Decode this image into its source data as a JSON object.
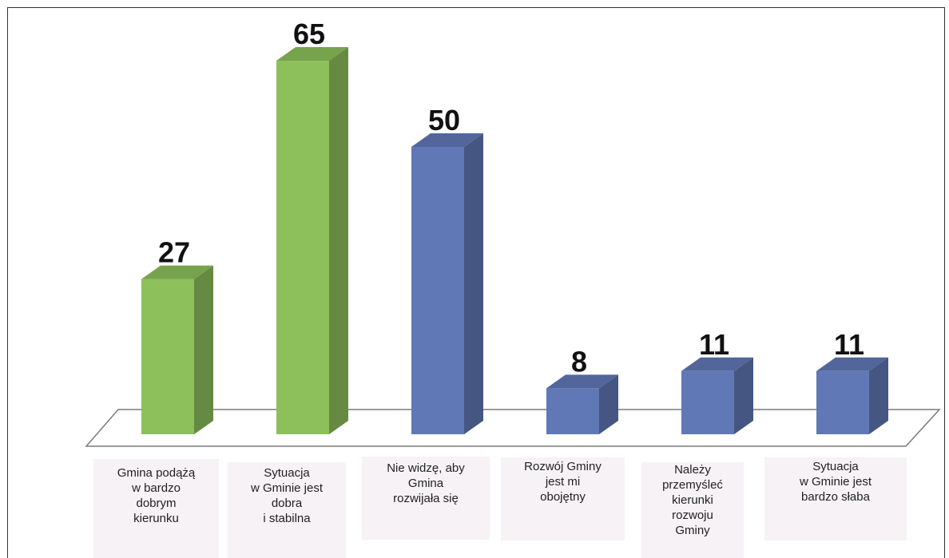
{
  "chart_data": {
    "type": "bar",
    "title": "",
    "xlabel": "",
    "ylabel": "",
    "categories": [
      "Gmina podążą\nw bardzo\ndobrym\nkierunku",
      "Sytuacja\nw Gminie jest\ndobra\ni stabilna",
      "Nie widzę, aby\nGmina\nrozwijała się",
      "Rozwój Gminy\njest mi\nobojętny",
      "Należy\nprzemyśleć\nkierunki\nrozwoju\nGminy",
      "Sytuacja\nw Gminie jest\nbardzo słaba"
    ],
    "values": [
      27,
      65,
      50,
      8,
      11,
      11
    ],
    "ylim": [
      0,
      65
    ],
    "grid": false,
    "legend": "none",
    "three_d": true,
    "bar_colors": [
      "#8dc05a",
      "#8dc05a",
      "#6178b6",
      "#6178b6",
      "#6178b6",
      "#6178b6"
    ]
  }
}
